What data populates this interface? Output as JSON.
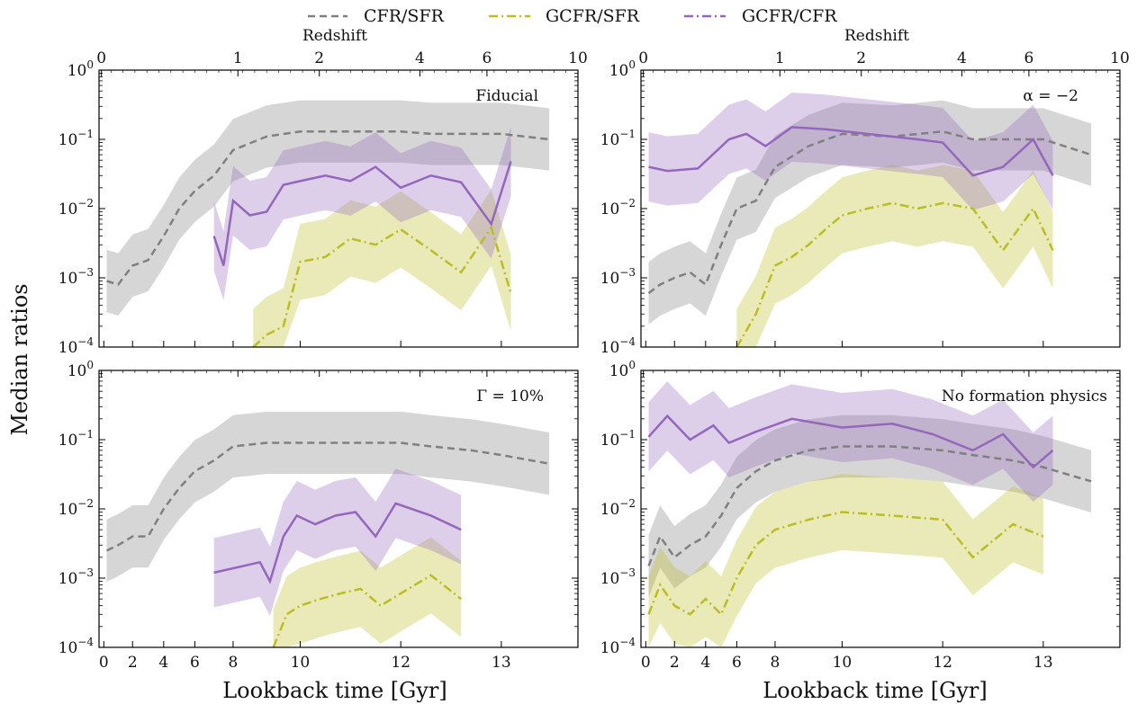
{
  "figure": {
    "ylabel": "Median ratios",
    "xlabel": "Lookback time [Gyr]",
    "top_axis_label": "Redshift"
  },
  "legend": [
    {
      "label": "CFR/SFR",
      "color": "#808080",
      "dash": "dash"
    },
    {
      "label": "GCFR/SFR",
      "color": "#bcbd22",
      "dash": "dashdot"
    },
    {
      "label": "GCFR/CFR",
      "color": "#9467bd",
      "dash": "solid"
    }
  ],
  "colors": {
    "cfr_sfr": "#808080",
    "gcfr_sfr": "#bcbd22",
    "gcfr_cfr": "#9467bd",
    "overlap": "#c4b59a"
  },
  "axes": {
    "y_scale": "log",
    "y_ticks": [
      {
        "base": "10",
        "exp": "0"
      },
      {
        "base": "10",
        "exp": "−1"
      },
      {
        "base": "10",
        "exp": "−2"
      },
      {
        "base": "10",
        "exp": "−3"
      },
      {
        "base": "10",
        "exp": "−4"
      }
    ],
    "x_ticks": [
      "0",
      "2",
      "4",
      "6",
      "8",
      "10",
      "12",
      "13"
    ],
    "z_ticks": [
      "0",
      "1",
      "2",
      "4",
      "6",
      "10"
    ]
  },
  "chart_data": [
    {
      "panel": "Fiducial",
      "type": "line",
      "ylim": [
        0.0001,
        1
      ],
      "series": [
        {
          "name": "CFR/SFR",
          "x": [
            0.2,
            1,
            2,
            3,
            4,
            5,
            6,
            7,
            8,
            9,
            10,
            11,
            12,
            12.3,
            12.7,
            13,
            13.5
          ],
          "values": [
            0.0009,
            0.0008,
            0.0015,
            0.0018,
            0.004,
            0.01,
            0.018,
            0.03,
            0.07,
            0.11,
            0.13,
            0.13,
            0.13,
            0.12,
            0.12,
            0.12,
            0.1
          ]
        },
        {
          "name": "GCFR/SFR",
          "x": [
            8.6,
            9.0,
            9.5,
            10.0,
            10.5,
            11.0,
            11.5,
            12.0,
            12.3,
            12.6,
            12.9,
            13.1
          ],
          "values": [
            0.0001,
            0.00015,
            0.0002,
            0.0017,
            0.002,
            0.0037,
            0.003,
            0.005,
            0.0025,
            0.0012,
            0.0053,
            0.0006
          ]
        },
        {
          "name": "GCFR/CFR",
          "x": [
            7.0,
            7.5,
            8.0,
            8.5,
            9.0,
            9.5,
            10.0,
            10.5,
            11.0,
            11.5,
            12.0,
            12.3,
            12.6,
            12.9,
            13.1
          ],
          "values": [
            0.004,
            0.0015,
            0.013,
            0.008,
            0.009,
            0.022,
            0.025,
            0.03,
            0.025,
            0.04,
            0.02,
            0.03,
            0.024,
            0.006,
            0.048
          ]
        }
      ]
    },
    {
      "panel": "α = −2",
      "type": "line",
      "ylim": [
        0.0001,
        1
      ],
      "series": [
        {
          "name": "CFR/SFR",
          "x": [
            0.2,
            1,
            2,
            3,
            4,
            5,
            6,
            7,
            8,
            9,
            10,
            11,
            12,
            12.3,
            12.7,
            13,
            13.5
          ],
          "values": [
            0.0006,
            0.0008,
            0.001,
            0.0012,
            0.0008,
            0.003,
            0.01,
            0.013,
            0.04,
            0.08,
            0.12,
            0.11,
            0.13,
            0.1,
            0.1,
            0.1,
            0.06
          ]
        },
        {
          "name": "GCFR/SFR",
          "x": [
            6.0,
            7.0,
            8.0,
            8.5,
            9.0,
            9.5,
            10.0,
            10.5,
            11.0,
            11.5,
            12.0,
            12.3,
            12.6,
            12.9,
            13.1
          ],
          "values": [
            0.0001,
            0.0003,
            0.0015,
            0.002,
            0.003,
            0.005,
            0.008,
            0.01,
            0.012,
            0.01,
            0.012,
            0.01,
            0.0025,
            0.01,
            0.0025
          ]
        },
        {
          "name": "GCFR/CFR",
          "x": [
            0.2,
            1.5,
            3.5,
            5.5,
            6.5,
            7.5,
            8.5,
            9.5,
            10.5,
            11.5,
            12.0,
            12.3,
            12.6,
            12.9,
            13.1
          ],
          "values": [
            0.04,
            0.035,
            0.038,
            0.1,
            0.12,
            0.08,
            0.15,
            0.14,
            0.12,
            0.1,
            0.09,
            0.03,
            0.04,
            0.1,
            0.03
          ]
        }
      ]
    },
    {
      "panel": "Γ = 10%",
      "type": "line",
      "ylim": [
        0.0001,
        1
      ],
      "series": [
        {
          "name": "CFR/SFR",
          "x": [
            0.2,
            1,
            2,
            3,
            4,
            5,
            6,
            7,
            8,
            9,
            10,
            11,
            12,
            12.3,
            12.7,
            13,
            13.5
          ],
          "values": [
            0.0025,
            0.003,
            0.004,
            0.004,
            0.01,
            0.02,
            0.035,
            0.05,
            0.08,
            0.09,
            0.09,
            0.09,
            0.09,
            0.08,
            0.07,
            0.06,
            0.045
          ]
        },
        {
          "name": "GCFR/SFR",
          "x": [
            9.2,
            9.6,
            10.0,
            10.4,
            10.8,
            11.2,
            11.6,
            12.0,
            12.3,
            12.6
          ],
          "values": [
            0.0001,
            0.0003,
            0.0004,
            0.0005,
            0.0006,
            0.0007,
            0.0004,
            0.0006,
            0.0011,
            0.0005
          ]
        },
        {
          "name": "GCFR/CFR",
          "x": [
            7.0,
            8.8,
            9.1,
            9.5,
            9.9,
            10.3,
            10.7,
            11.1,
            11.5,
            11.9,
            12.3,
            12.6
          ],
          "values": [
            0.0012,
            0.0017,
            0.0009,
            0.004,
            0.008,
            0.006,
            0.008,
            0.009,
            0.004,
            0.012,
            0.008,
            0.005
          ]
        }
      ]
    },
    {
      "panel": "No formation physics",
      "type": "line",
      "ylim": [
        0.0001,
        1
      ],
      "series": [
        {
          "name": "CFR/SFR",
          "x": [
            0.2,
            1,
            2,
            3,
            4,
            5,
            6,
            7,
            8,
            9,
            10,
            11,
            12,
            12.3,
            12.7,
            13,
            13.5
          ],
          "values": [
            0.0015,
            0.004,
            0.002,
            0.003,
            0.004,
            0.008,
            0.02,
            0.035,
            0.05,
            0.07,
            0.08,
            0.08,
            0.07,
            0.06,
            0.05,
            0.04,
            0.025
          ]
        },
        {
          "name": "GCFR/SFR",
          "x": [
            0.2,
            1,
            2,
            3,
            4,
            5,
            6,
            7,
            8,
            9,
            10,
            11,
            12,
            12.3,
            12.7,
            13
          ],
          "values": [
            0.0003,
            0.0008,
            0.0004,
            0.0003,
            0.0005,
            0.0003,
            0.001,
            0.003,
            0.005,
            0.007,
            0.009,
            0.008,
            0.007,
            0.002,
            0.006,
            0.004
          ]
        },
        {
          "name": "GCFR/CFR",
          "x": [
            0.2,
            1.5,
            3,
            4.5,
            5.5,
            7,
            8.5,
            10,
            11,
            11.8,
            12.3,
            12.6,
            12.9,
            13.1
          ],
          "values": [
            0.11,
            0.22,
            0.1,
            0.16,
            0.09,
            0.13,
            0.2,
            0.15,
            0.17,
            0.12,
            0.07,
            0.12,
            0.04,
            0.07
          ]
        }
      ]
    }
  ]
}
